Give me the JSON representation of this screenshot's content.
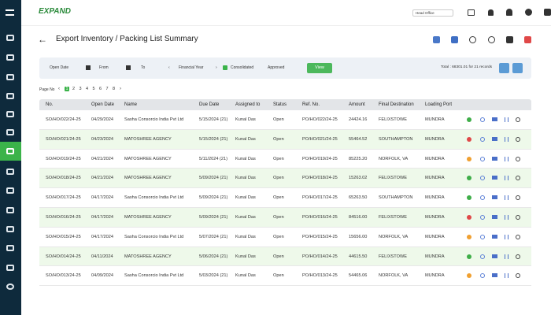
{
  "header": {
    "logo": "EXPAND",
    "branch": "Head Office"
  },
  "page_title": "Export Inventory / Packing List Summary",
  "filters": {
    "date_field": "Open Date",
    "from": "From",
    "to": "To",
    "financial_year": "Financial Year",
    "consolidated": "Consolidated",
    "approval": "Approved",
    "view_button": "View",
    "total": "Total : 68301.01 for 21 records"
  },
  "pagination": {
    "label": "Page No",
    "pages": [
      "1",
      "2",
      "3",
      "4",
      "5",
      "6",
      "7",
      "8"
    ]
  },
  "table": {
    "columns": [
      "No.",
      "Open Date",
      "Name",
      "Due Date",
      "Assigned to",
      "Status",
      "Ref. No.",
      "Amount",
      "Final Destination",
      "Loading Port"
    ],
    "rows": [
      [
        "SO/HO/022/24-25",
        "04/29/2024",
        "Sasha Consorcio India Pvt Ltd",
        "5/15/2024 (21)",
        "Kunal Das",
        "Open",
        "PO/HO/022/24-25",
        "24424.16",
        "FELIXSTOWE",
        "MUNDRA"
      ],
      [
        "SO/HO/021/24-25",
        "04/23/2024",
        "MATOSHREE AGENCY",
        "5/15/2024 (21)",
        "Kunal Das",
        "Open",
        "PO/HO/021/24-25",
        "55464.52",
        "SOUTHAMPTON",
        "MUNDRA"
      ],
      [
        "SO/HO/019/24-25",
        "04/21/2024",
        "MATOSHREE AGENCY",
        "5/11/2024 (21)",
        "Kunal Das",
        "Open",
        "PO/HO/019/24-25",
        "85225.20",
        "NORFOLK, VA",
        "MUNDRA"
      ],
      [
        "SO/HO/018/24-25",
        "04/21/2024",
        "MATOSHREE AGENCY",
        "5/09/2024 (21)",
        "Kunal Das",
        "Open",
        "PO/HO/018/24-25",
        "15263.02",
        "FELIXSTOWE",
        "MUNDRA"
      ],
      [
        "SO/HO/017/24-25",
        "04/17/2024",
        "Sasha Consorcio India Pvt Ltd",
        "5/09/2024 (21)",
        "Kunal Das",
        "Open",
        "PO/HO/017/24-25",
        "65263.50",
        "SOUTHAMPTON",
        "MUNDRA"
      ],
      [
        "SO/HO/016/24-25",
        "04/17/2024",
        "MATOSHREE AGENCY",
        "5/09/2024 (21)",
        "Kunal Das",
        "Open",
        "PO/HO/016/24-25",
        "84516.00",
        "FELIXSTOWE",
        "MUNDRA"
      ],
      [
        "SO/HO/015/24-25",
        "04/17/2024",
        "Sasha Consorcio India Pvt Ltd",
        "5/07/2024 (21)",
        "Kunal Das",
        "Open",
        "PO/HO/015/24-25",
        "15656.00",
        "NORFOLK, VA",
        "MUNDRA"
      ],
      [
        "SO/HO/014/24-25",
        "04/11/2024",
        "MATOSHREE AGENCY",
        "5/06/2024 (21)",
        "Kunal Das",
        "Open",
        "PO/HO/014/24-25",
        "44615.50",
        "FELIXSTOWE",
        "MUNDRA"
      ],
      [
        "SO/HO/013/24-25",
        "04/09/2024",
        "Sasha Consorcio India Pvt Ltd",
        "5/03/2024 (21)",
        "Kunal Das",
        "Open",
        "PO/HO/013/24-25",
        "54465.06",
        "NORFOLK, VA",
        "MUNDRA"
      ]
    ],
    "status_colors": [
      "#3fae49",
      "#e04848",
      "#f0a030",
      "#3fae49",
      "#3fae49",
      "#e04848",
      "#f0a030",
      "#3fae49",
      "#f0a030"
    ]
  }
}
